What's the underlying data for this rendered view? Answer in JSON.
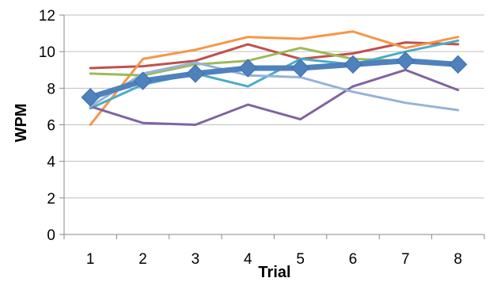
{
  "chart_data": {
    "type": "line",
    "title": "",
    "xlabel": "Trial",
    "ylabel": "WPM",
    "categories": [
      "1",
      "2",
      "3",
      "4",
      "5",
      "6",
      "7",
      "8"
    ],
    "ylim": [
      0,
      12
    ],
    "yticks": [
      "0",
      "2",
      "4",
      "6",
      "8",
      "10",
      "12"
    ],
    "grid": true,
    "legend": "none",
    "series": [
      {
        "color": "#c0504d",
        "values": [
          9.1,
          9.2,
          9.5,
          10.4,
          9.6,
          9.9,
          10.5,
          10.4
        ]
      },
      {
        "color": "#f79646",
        "values": [
          6.0,
          9.6,
          10.1,
          10.8,
          10.7,
          11.1,
          10.2,
          10.8
        ]
      },
      {
        "color": "#9bbb59",
        "values": [
          8.8,
          8.7,
          9.3,
          9.5,
          10.2,
          9.6,
          9.5,
          9.4
        ]
      },
      {
        "color": "#4bacc6",
        "values": [
          6.9,
          8.2,
          8.8,
          8.1,
          9.6,
          9.3,
          10.0,
          10.6
        ]
      },
      {
        "color": "#8064a2",
        "values": [
          7.0,
          6.1,
          6.0,
          7.1,
          6.3,
          8.1,
          9.0,
          7.9
        ]
      },
      {
        "color": "#95b3d7",
        "values": [
          7.0,
          8.8,
          9.4,
          8.7,
          8.6,
          7.8,
          7.2,
          6.8
        ]
      },
      {
        "color": "#4f81bd",
        "average": true,
        "values": [
          7.5,
          8.4,
          8.8,
          9.1,
          9.1,
          9.3,
          9.5,
          9.3
        ]
      }
    ]
  }
}
